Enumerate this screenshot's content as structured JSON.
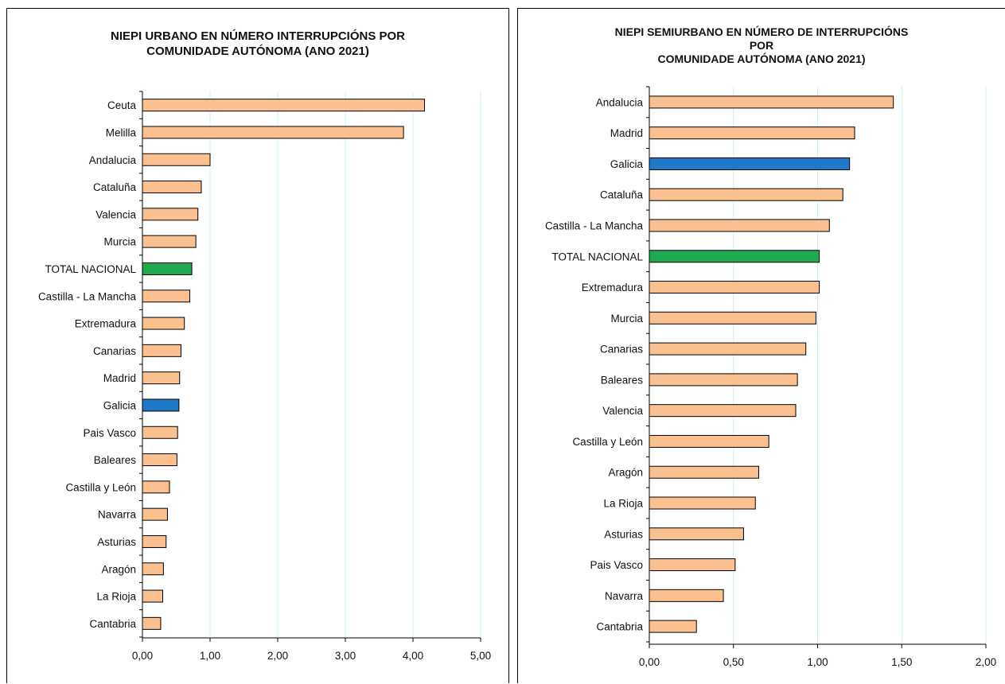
{
  "colors": {
    "bar": "#FAC090",
    "galicia": "#1F78C8",
    "total": "#1FAA50",
    "grid": "#CCF2F8",
    "axis": "#000000"
  },
  "chart_data": [
    {
      "type": "bar",
      "orientation": "horizontal",
      "title_lines": [
        "NIEPI URBANO EN NÚMERO INTERRUPCIÓNS POR",
        "COMUNIDADE AUTÓNOMA (ANO 2021)"
      ],
      "categories": [
        "Ceuta",
        "Melilla",
        "Andalucia",
        "Cataluña",
        "Valencia",
        "Murcia",
        "TOTAL NACIONAL",
        "Castilla - La Mancha",
        "Extremadura",
        "Canarias",
        "Madrid",
        "Galicia",
        "Pais Vasco",
        "Baleares",
        "Castilla y León",
        "Navarra",
        "Asturias",
        "Aragón",
        "La Rioja",
        "Cantabria"
      ],
      "values": [
        4.17,
        3.86,
        1.0,
        0.87,
        0.82,
        0.79,
        0.73,
        0.7,
        0.62,
        0.57,
        0.55,
        0.54,
        0.52,
        0.51,
        0.4,
        0.37,
        0.35,
        0.31,
        0.3,
        0.27
      ],
      "xlim": [
        0,
        5
      ],
      "xticks": [
        0,
        1,
        2,
        3,
        4,
        5
      ],
      "xtick_labels": [
        "0,00",
        "1,00",
        "2,00",
        "3,00",
        "4,00",
        "5,00"
      ],
      "grid": true
    },
    {
      "type": "bar",
      "orientation": "horizontal",
      "title_lines": [
        "NIEPI SEMIURBANO EN NÚMERO  DE INTERRUPCIÓNS",
        "POR",
        "COMUNIDADE AUTÓNOMA (ANO 2021)"
      ],
      "categories": [
        "Andalucia",
        "Madrid",
        "Galicia",
        "Cataluña",
        "Castilla - La Mancha",
        "TOTAL NACIONAL",
        "Extremadura",
        "Murcia",
        "Canarias",
        "Baleares",
        "Valencia",
        "Castilla y León",
        "Aragón",
        "La Rioja",
        "Asturias",
        "Pais Vasco",
        "Navarra",
        "Cantabria"
      ],
      "values": [
        1.45,
        1.22,
        1.19,
        1.15,
        1.07,
        1.01,
        1.01,
        0.99,
        0.93,
        0.88,
        0.87,
        0.71,
        0.65,
        0.63,
        0.56,
        0.51,
        0.44,
        0.28
      ],
      "xlim": [
        0,
        2
      ],
      "xticks": [
        0,
        0.5,
        1,
        1.5,
        2
      ],
      "xtick_labels": [
        "0,00",
        "0,50",
        "1,00",
        "1,50",
        "2,00"
      ],
      "grid": true
    }
  ]
}
